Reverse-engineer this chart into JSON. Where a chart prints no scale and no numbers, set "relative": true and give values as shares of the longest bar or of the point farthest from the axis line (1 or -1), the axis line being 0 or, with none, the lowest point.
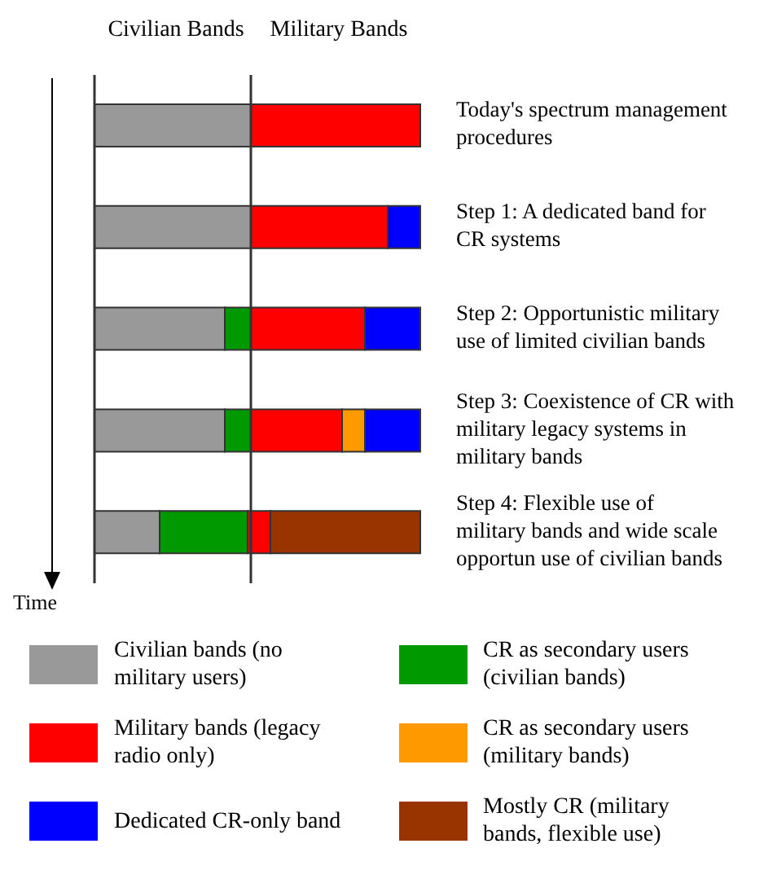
{
  "chart_data": {
    "type": "bar",
    "orientation": "horizontal",
    "stacked": true,
    "relative": true,
    "ylabel": "Time",
    "annotations": [
      "Civilian Bands",
      "Military Bands"
    ],
    "categories": [
      "Today's spectrum management procedures",
      "Step 1: A dedicated band for CR systems",
      "Step 2: Opportunistic military use of limited civilian bands",
      "Step 3: Coexistence of CR with military legacy systems in military bands",
      "Step 4: Flexible use of military bands and wide scale opportun use of civilian bands"
    ],
    "series": [
      {
        "name": "Civilian bands (no military users)",
        "color": "#999999",
        "values": [
          0.48,
          0.48,
          0.4,
          0.4,
          0.2
        ]
      },
      {
        "name": "CR as secondary users (civilian bands)",
        "color": "#009900",
        "values": [
          null,
          null,
          0.08,
          0.08,
          0.27
        ]
      },
      {
        "name": "Military bands (legacy radio only)",
        "color": "#ff0000",
        "values": [
          0.52,
          0.42,
          0.35,
          0.28,
          0.07
        ]
      },
      {
        "name": "CR as secondary users (military bands)",
        "color": "#ff9900",
        "values": [
          null,
          null,
          null,
          0.07,
          null
        ]
      },
      {
        "name": "Dedicated CR-only band",
        "color": "#0000ff",
        "values": [
          null,
          0.1,
          0.17,
          0.17,
          null
        ]
      },
      {
        "name": "Mostly CR (military bands, flexible use)",
        "color": "#993300",
        "values": [
          null,
          null,
          null,
          null,
          0.46
        ]
      }
    ],
    "ref_lines": [
      {
        "axis": "x",
        "value": 0.48,
        "color": "#333333"
      }
    ],
    "legend": "bottom"
  }
}
